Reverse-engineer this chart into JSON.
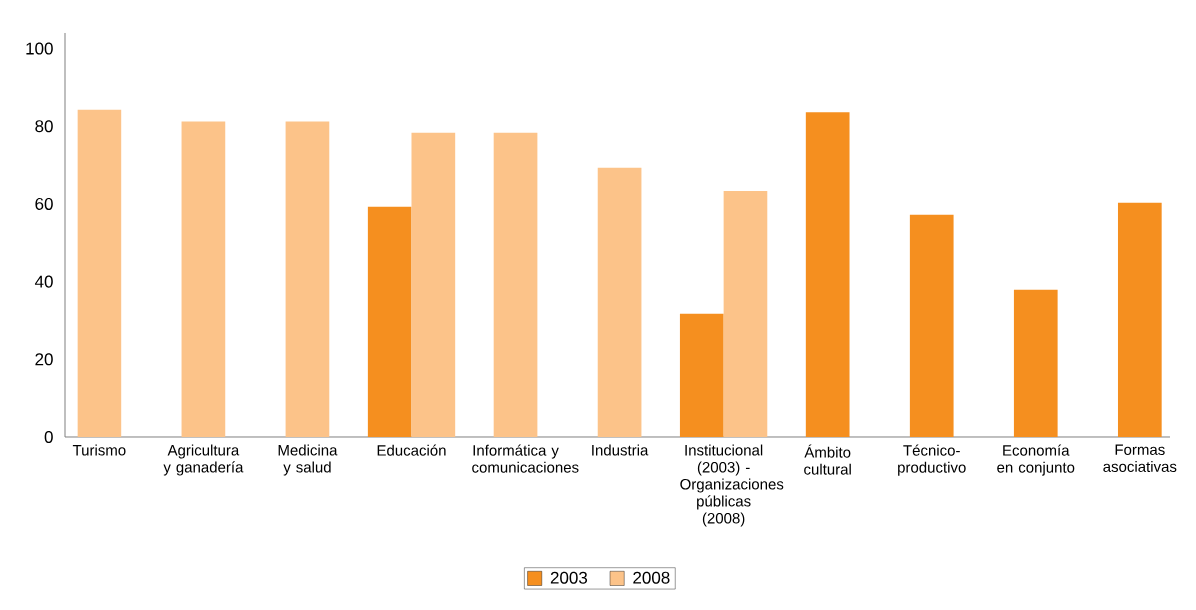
{
  "chart_data": {
    "type": "bar",
    "categories": [
      "Turismo",
      "Agricultura y ganadería",
      "Medicina y salud",
      "Educación",
      "Informática y comunicaciones",
      "Industria",
      "Institucional (2003) - Organizaciones públicas (2008)",
      "Ámbito cultural",
      "Técnico-productivo",
      "Economía en conjunto",
      "Formas asociativas"
    ],
    "series": [
      {
        "name": "2003",
        "color": "#f58f1f",
        "values": [
          null,
          null,
          null,
          59.3,
          null,
          null,
          31.7,
          83.6,
          57.2,
          37.9,
          60.3
        ]
      },
      {
        "name": "2008",
        "color": "#fcc389",
        "values": [
          84.3,
          81.2,
          81.2,
          78.3,
          78.3,
          69.3,
          63.3,
          null,
          null,
          null,
          null
        ]
      }
    ],
    "ylim": [
      0,
      104
    ],
    "yticks": [
      0,
      20,
      40,
      60,
      80,
      100
    ],
    "grid": false,
    "legend": "bottom"
  }
}
